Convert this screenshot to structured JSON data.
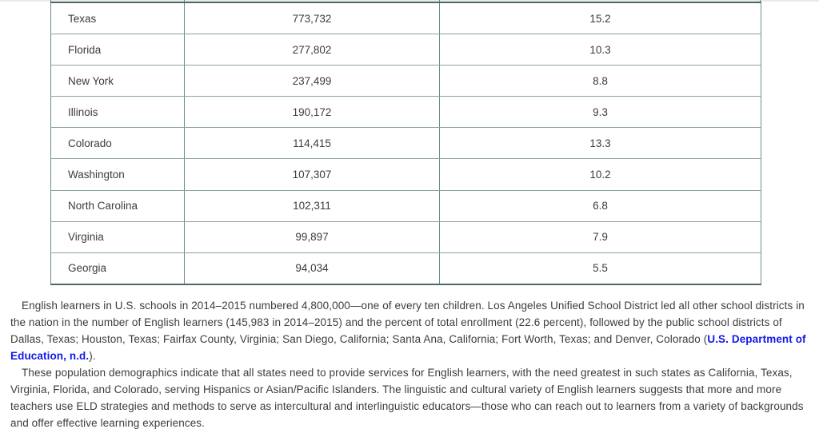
{
  "colors": {
    "link_blue": "#1018e8",
    "border_dark": "#4c6868",
    "border_mid": "#6e8b8b",
    "border_light": "#8ba1a1",
    "text": "#3c3c3c",
    "hairline": "#eaeaea"
  },
  "table": {
    "column_names": [
      "state",
      "english-learner-count",
      "percent-of-enrollment"
    ],
    "rows": [
      [
        "Texas",
        "773,732",
        "15.2"
      ],
      [
        "Florida",
        "277,802",
        "10.3"
      ],
      [
        "New York",
        "237,499",
        "8.8"
      ],
      [
        "Illinois",
        "190,172",
        "9.3"
      ],
      [
        "Colorado",
        "114,415",
        "13.3"
      ],
      [
        "Washington",
        "107,307",
        "10.2"
      ],
      [
        "North Carolina",
        "102,311",
        "6.8"
      ],
      [
        "Virginia",
        "99,897",
        "7.9"
      ],
      [
        "Georgia",
        "94,034",
        "5.5"
      ]
    ]
  },
  "paragraphs": [
    {
      "lines": [
        [
          {
            "text": "English learners in U.S. schools in 2014–2015 numbered 4,800,000—one of every ten children. Los Angeles Unified School District led all other school districts in"
          }
        ],
        [
          {
            "text": "the nation in the number of English learners (145,983 in 2014–2015) and the percent of total enrollment (22.6 percent), followed by the public school districts of"
          }
        ],
        [
          {
            "text": "Dallas, Texas; Houston, Texas; Fairfax County, Virginia; San Diego, California; Santa Ana, California; Fort Worth, Texas; and Denver, Colorado ("
          },
          {
            "text": "U.S. Department of",
            "link": true
          }
        ],
        [
          {
            "text": "Education, n.d.",
            "link": true
          },
          {
            "text": ")."
          }
        ]
      ]
    },
    {
      "lines": [
        [
          {
            "text": "These population demographics indicate that all states need to provide services for English learners, with the need greatest in such states as California, Texas,"
          }
        ],
        [
          {
            "text": "Virginia, Florida, and Colorado, serving Hispanics or Asian/Pacific Islanders. The linguistic and cultural variety of English learners suggests that more and more"
          }
        ],
        [
          {
            "text": "teachers use ELD strategies and methods to serve as intercultural and interlinguistic educators—those who can reach out to learners from a variety of backgrounds"
          }
        ],
        [
          {
            "text": "and offer effective learning experiences."
          }
        ]
      ]
    }
  ]
}
